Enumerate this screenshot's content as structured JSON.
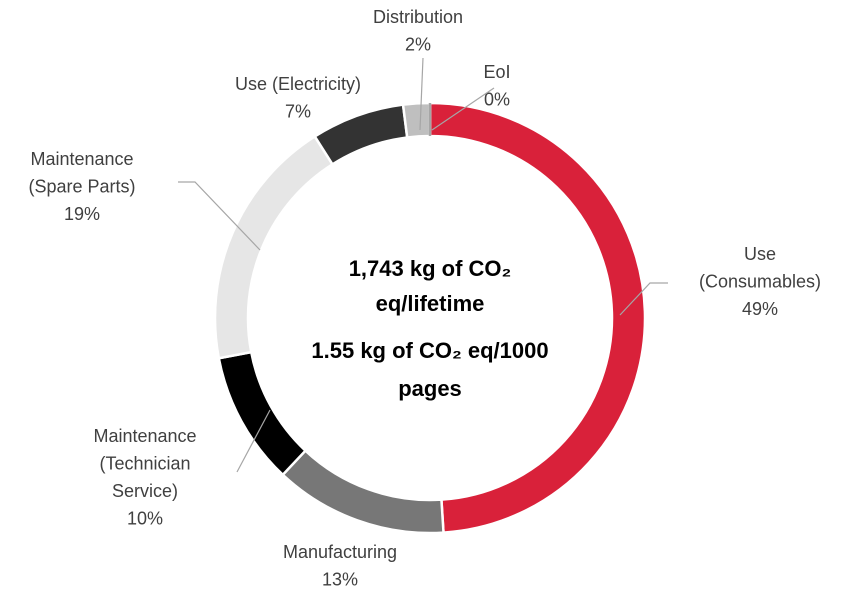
{
  "chart_data": {
    "type": "donut",
    "categories": [
      "Use\n(Consumables)",
      "Manufacturing",
      "Maintenance\n(Technician\nService)",
      "Maintenance\n(Spare Parts)",
      "Use (Electricity)",
      "Distribution",
      "EoI"
    ],
    "values": [
      49,
      13,
      10,
      19,
      7,
      2,
      0
    ],
    "value_labels": [
      "49%",
      "13%",
      "10%",
      "19%",
      "7%",
      "2%",
      "0%"
    ],
    "colors": [
      "#d9213a",
      "#777777",
      "#000000",
      "#e6e6e6",
      "#333333",
      "#bfbfbf",
      "#a6a6a6"
    ],
    "annotations": [
      "1,743 kg of CO₂\neq/lifetime",
      "1.55 kg of CO₂ eq/1000\npages"
    ]
  }
}
